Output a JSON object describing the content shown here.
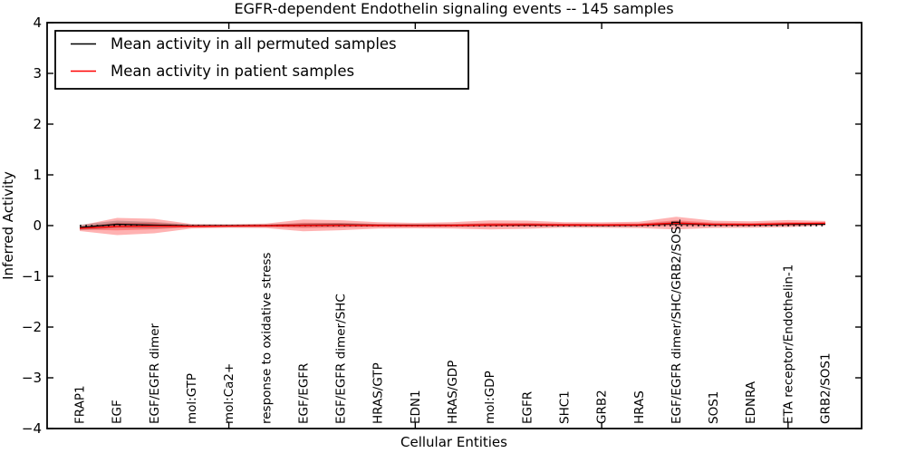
{
  "title": "EGFR-dependent Endothelin signaling events -- 145 samples",
  "legend": {
    "items": [
      {
        "label": "Mean activity in all permuted samples",
        "color": "#000000"
      },
      {
        "label": "Mean activity in patient samples",
        "color": "#ff0000"
      }
    ]
  },
  "chart_data": {
    "type": "line-with-bands",
    "title": "EGFR-dependent Endothelin signaling events -- 145 samples",
    "xlabel": "Cellular Entities",
    "ylabel": "Inferred Activity",
    "ylim": [
      -4,
      4
    ],
    "ytick_labels": [
      "4",
      "3",
      "2",
      "1",
      "0",
      "−1",
      "−2",
      "−3",
      "−4"
    ],
    "grid": false,
    "legend_position": "upper left",
    "zero_reference_line": {
      "y": 0,
      "style": "dotted",
      "color": "#000000"
    },
    "categories": [
      "FRAP1",
      "EGF",
      "EGF/EGFR dimer",
      "mol:GTP",
      "mol:Ca2+",
      "response to oxidative stress",
      "EGF/EGFR",
      "EGF/EGFR dimer/SHC",
      "HRAS/GTP",
      "EDN1",
      "HRAS/GDP",
      "mol:GDP",
      "EGFR",
      "SHC1",
      "GRB2",
      "HRAS",
      "EGF/EGFR dimer/SHC/GRB2/SOS1",
      "SOS1",
      "EDNRA",
      "ETA receptor/Endothelin-1",
      "GRB2/SOS1"
    ],
    "series": [
      {
        "name": "Mean activity in all permuted samples",
        "color": "#000000",
        "values": [
          -0.036,
          0.027,
          0.009,
          -0.005,
          -0.004,
          0.0,
          0.009,
          0.013,
          0.007,
          0.004,
          0.005,
          0.011,
          0.013,
          0.009,
          0.007,
          0.009,
          0.039,
          0.018,
          0.014,
          0.025,
          0.03
        ],
        "band_halfwidths": [
          0.054,
          0.071,
          0.063,
          0.027,
          0.027,
          0.027,
          0.036,
          0.036,
          0.027,
          0.027,
          0.027,
          0.027,
          0.027,
          0.027,
          0.027,
          0.027,
          0.036,
          0.027,
          0.027,
          0.027,
          0.027
        ]
      },
      {
        "name": "Mean activity in patient samples",
        "color": "#ff0000",
        "values": [
          -0.054,
          -0.018,
          -0.009,
          -0.014,
          -0.009,
          -0.004,
          0.004,
          0.007,
          0.004,
          0.0,
          0.004,
          0.014,
          0.018,
          0.013,
          0.011,
          0.014,
          0.05,
          0.025,
          0.021,
          0.038,
          0.046
        ],
        "band_halfwidths": [
          0.054,
          0.17,
          0.143,
          0.045,
          0.036,
          0.045,
          0.116,
          0.098,
          0.063,
          0.054,
          0.063,
          0.089,
          0.08,
          0.054,
          0.054,
          0.063,
          0.125,
          0.071,
          0.063,
          0.071,
          0.045
        ]
      }
    ]
  }
}
